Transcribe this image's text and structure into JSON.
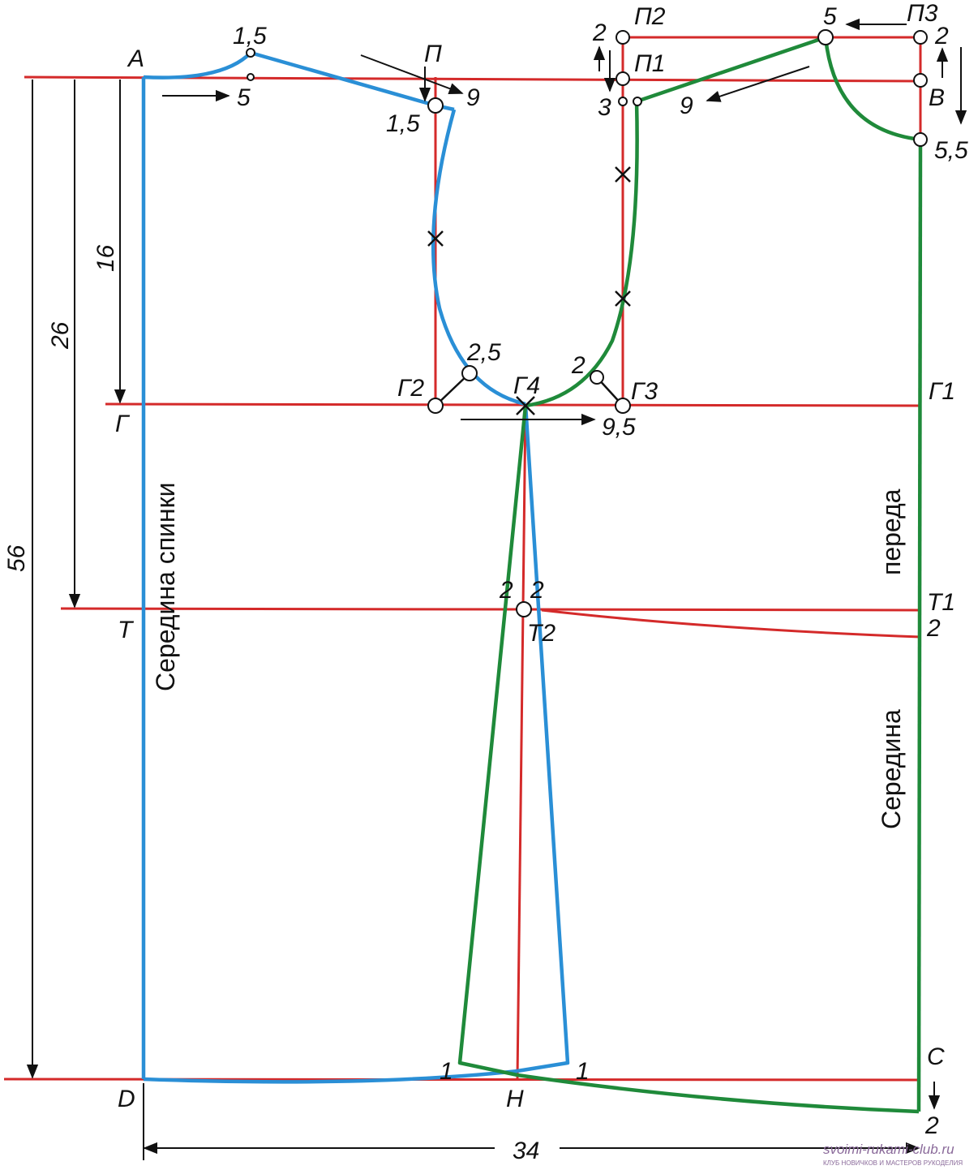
{
  "diagram": {
    "colors": {
      "construction": "#d42a2a",
      "back": "#2a8fd6",
      "front": "#1f8a3a",
      "ink": "#111111"
    },
    "text": {
      "vertical_back": "Середина спинки",
      "vertical_front_top": "переда",
      "vertical_front_bottom": "Середина"
    },
    "points": {
      "A": "А",
      "G": "Г",
      "T": "Т",
      "D": "D",
      "P": "П",
      "P1": "П1",
      "P2": "П2",
      "P3": "П3",
      "V": "В",
      "G1": "Г1",
      "G2": "Г2",
      "G3": "Г3",
      "G4": "Г4",
      "T1": "Т1",
      "T2": "Т2",
      "C": "С",
      "H": "Н"
    },
    "dims": {
      "d16": "16",
      "d26": "26",
      "d56": "56",
      "d34": "34",
      "d1_5_top": "1,5",
      "d5_left": "5",
      "d9_left": "9",
      "d1_5_shoulder": "1,5",
      "d2_p2": "2",
      "d3": "3",
      "d9_right": "9",
      "d5_top": "5",
      "d2_p3": "2",
      "d5_5": "5,5",
      "d2_5": "2,5",
      "d2_g3": "2",
      "d9_5": "9,5",
      "d2_t_left": "2",
      "d2_t_right": "2",
      "d2_t1": "2",
      "d1_left": "1",
      "d1_right": "1",
      "d2_c": "2"
    },
    "watermark": {
      "url": "svoimi-rukami-club.ru",
      "subtitle": "КЛУБ НОВИЧКОВ И МАСТЕРОВ РУКОДЕЛИЯ"
    }
  }
}
